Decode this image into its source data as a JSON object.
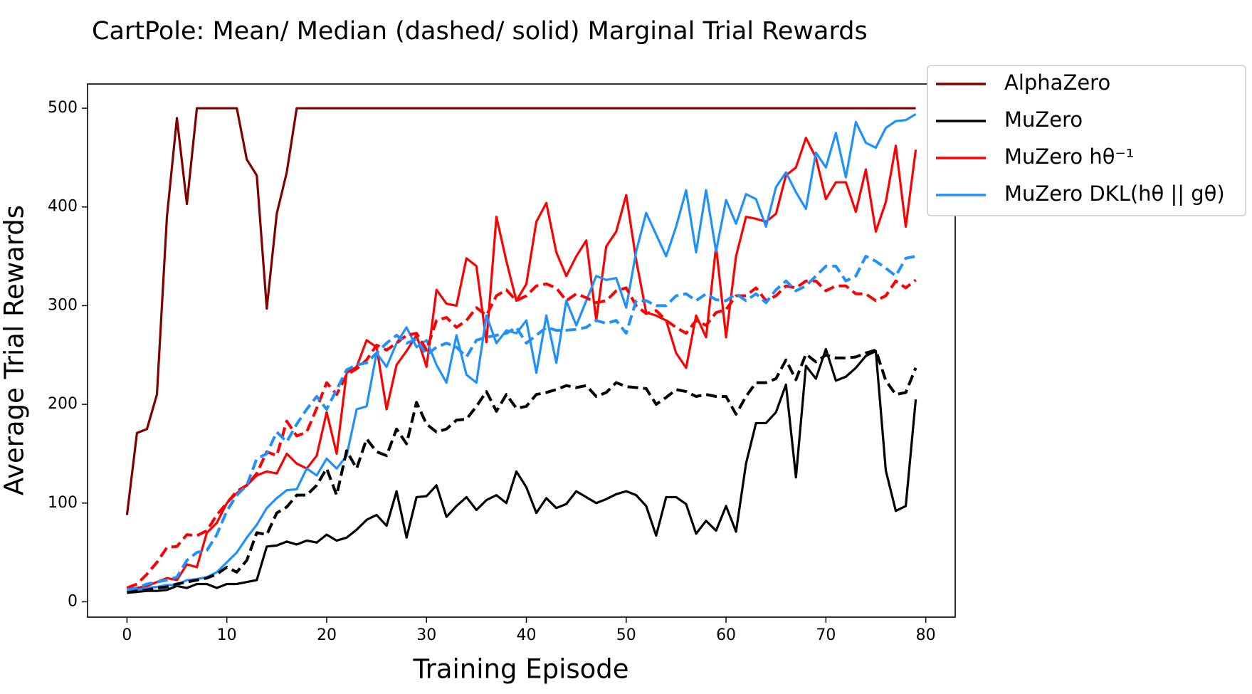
{
  "chart_data": {
    "type": "line",
    "title": "CartPole: Mean/ Median (dashed/ solid) Marginal Trial Rewards",
    "x_label": "Training Episode",
    "y_label": "Average Trial Rewards",
    "x": [
      0,
      1,
      2,
      3,
      4,
      5,
      6,
      7,
      8,
      9,
      10,
      11,
      12,
      13,
      14,
      15,
      16,
      17,
      18,
      19,
      20,
      21,
      22,
      23,
      24,
      25,
      26,
      27,
      28,
      29,
      30,
      31,
      32,
      33,
      34,
      35,
      36,
      37,
      38,
      39,
      40,
      41,
      42,
      43,
      44,
      45,
      46,
      47,
      48,
      49,
      50,
      51,
      52,
      53,
      54,
      55,
      56,
      57,
      58,
      59,
      60,
      61,
      62,
      63,
      64,
      65,
      66,
      67,
      68,
      69,
      70,
      71,
      72,
      73,
      74,
      75,
      76,
      77,
      78,
      79
    ],
    "xlim": [
      -3.95,
      82.95
    ],
    "xticks": [
      0,
      10,
      20,
      30,
      40,
      50,
      60,
      70,
      80
    ],
    "ylim": [
      -15.55,
      524.55
    ],
    "yticks": [
      0,
      100,
      200,
      300,
      400,
      500
    ],
    "legend_loc": "upper right",
    "series": [
      {
        "name": "AlphaZero",
        "color": "#800000",
        "median": [
          88,
          171,
          175,
          210,
          390,
          490,
          403,
          500,
          500,
          500,
          500,
          500,
          448,
          432,
          297,
          393,
          435,
          500,
          500,
          500,
          500,
          500,
          500,
          500,
          500,
          500,
          500,
          500,
          500,
          500,
          500,
          500,
          500,
          500,
          500,
          500,
          500,
          500,
          500,
          500,
          500,
          500,
          500,
          500,
          500,
          500,
          500,
          500,
          500,
          500,
          500,
          500,
          500,
          500,
          500,
          500,
          500,
          500,
          500,
          500,
          500,
          500,
          500,
          500,
          500,
          500,
          500,
          500,
          500,
          500,
          500,
          500,
          500,
          500,
          500,
          500,
          500,
          500,
          500,
          500
        ]
      },
      {
        "name": "MuZero",
        "color": "#000000",
        "median": [
          9,
          10,
          11,
          11,
          12,
          16,
          14,
          18,
          18,
          14,
          18,
          18,
          20,
          22,
          56,
          57,
          61,
          58,
          62,
          60,
          68,
          62,
          65,
          73,
          83,
          88,
          77,
          112,
          65,
          106,
          107,
          118,
          86,
          97,
          106,
          93,
          103,
          108,
          100,
          132,
          116,
          90,
          105,
          95,
          99,
          112,
          106,
          100,
          104,
          109,
          112,
          108,
          97,
          67,
          106,
          106,
          99,
          69,
          82,
          72,
          97,
          71,
          140,
          181,
          181,
          192,
          220,
          126,
          239,
          226,
          256,
          224,
          228,
          237,
          249,
          254,
          133,
          92,
          97,
          205
        ],
        "mean": [
          10,
          11,
          12,
          14,
          15,
          18,
          20,
          22,
          24,
          28,
          35,
          30,
          42,
          70,
          68,
          90,
          96,
          108,
          108,
          118,
          135,
          108,
          153,
          135,
          165,
          152,
          148,
          175,
          160,
          202,
          180,
          172,
          175,
          184,
          185,
          198,
          213,
          193,
          210,
          196,
          198,
          210,
          212,
          215,
          219,
          217,
          219,
          208,
          212,
          222,
          218,
          217,
          216,
          200,
          207,
          215,
          213,
          208,
          210,
          208,
          208,
          190,
          208,
          222,
          222,
          226,
          245,
          225,
          251,
          243,
          250,
          247,
          247,
          248,
          252,
          255,
          224,
          210,
          212,
          237
        ]
      },
      {
        "name": "MuZero hθ⁻¹",
        "color": "#ff0000",
        "median": [
          13,
          14,
          16,
          20,
          24,
          22,
          38,
          35,
          70,
          80,
          100,
          110,
          118,
          128,
          132,
          130,
          150,
          140,
          135,
          148,
          192,
          150,
          232,
          238,
          265,
          258,
          195,
          240,
          254,
          270,
          238,
          316,
          302,
          300,
          348,
          340,
          263,
          390,
          345,
          305,
          322,
          385,
          404,
          354,
          330,
          350,
          366,
          285,
          360,
          375,
          412,
          346,
          293,
          290,
          285,
          252,
          237,
          290,
          268,
          360,
          268,
          350,
          390,
          388,
          385,
          393,
          432,
          440,
          470,
          450,
          408,
          425,
          425,
          395,
          438,
          375,
          405,
          462,
          380,
          458
        ],
        "mean": [
          14,
          18,
          28,
          40,
          55,
          56,
          68,
          67,
          72,
          88,
          100,
          112,
          118,
          130,
          152,
          148,
          183,
          168,
          172,
          196,
          222,
          210,
          230,
          236,
          245,
          260,
          255,
          262,
          270,
          272,
          255,
          285,
          288,
          278,
          285,
          298,
          290,
          310,
          316,
          305,
          310,
          320,
          322,
          318,
          305,
          312,
          308,
          303,
          305,
          315,
          318,
          300,
          292,
          295,
          285,
          278,
          272,
          285,
          280,
          293,
          296,
          310,
          310,
          318,
          305,
          310,
          320,
          318,
          325,
          325,
          315,
          320,
          320,
          312,
          312,
          305,
          310,
          325,
          318,
          326
        ]
      },
      {
        "name": "MuZero DKL(hθ || gθ)",
        "color": "#1e90ff",
        "median": [
          11,
          12,
          14,
          15,
          17,
          17,
          22,
          23,
          25,
          30,
          40,
          50,
          65,
          78,
          95,
          105,
          113,
          114,
          135,
          128,
          145,
          135,
          148,
          195,
          198,
          252,
          238,
          262,
          278,
          258,
          265,
          240,
          222,
          270,
          230,
          222,
          290,
          262,
          275,
          272,
          285,
          232,
          290,
          242,
          305,
          280,
          305,
          330,
          326,
          328,
          298,
          355,
          394,
          372,
          350,
          380,
          417,
          354,
          417,
          355,
          407,
          383,
          413,
          408,
          380,
          420,
          435,
          415,
          398,
          455,
          440,
          475,
          430,
          486,
          465,
          460,
          480,
          487,
          488,
          494
        ],
        "mean": [
          12,
          14,
          18,
          20,
          22,
          25,
          42,
          50,
          52,
          68,
          92,
          108,
          118,
          145,
          150,
          172,
          162,
          180,
          195,
          208,
          195,
          215,
          235,
          240,
          242,
          252,
          262,
          270,
          262,
          266,
          250,
          258,
          262,
          258,
          248,
          265,
          268,
          270,
          272,
          278,
          262,
          270,
          278,
          275,
          275,
          276,
          278,
          285,
          282,
          285,
          272,
          305,
          305,
          300,
          300,
          310,
          312,
          305,
          312,
          306,
          305,
          312,
          305,
          312,
          303,
          316,
          325,
          315,
          320,
          330,
          340,
          340,
          325,
          330,
          350,
          345,
          338,
          330,
          348,
          350
        ]
      }
    ]
  }
}
